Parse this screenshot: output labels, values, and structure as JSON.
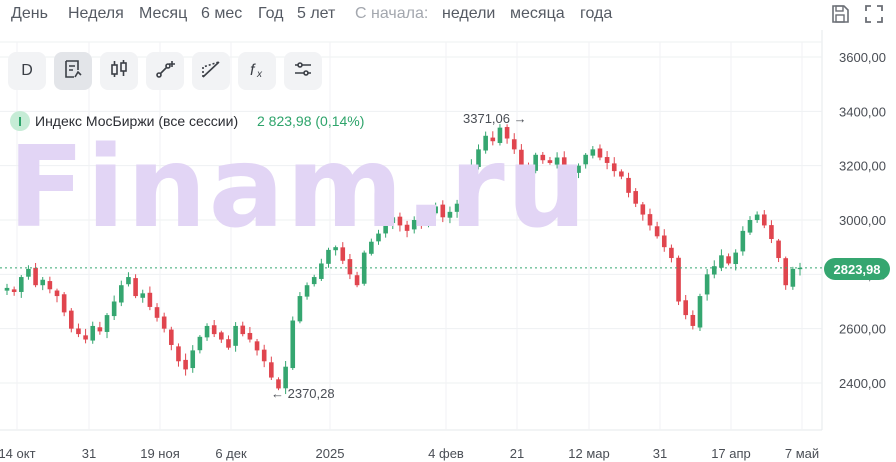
{
  "periods": {
    "items": [
      "День",
      "Неделя",
      "Месяц",
      "6 мес",
      "Год",
      "5 лет"
    ],
    "since_label": "С начала:",
    "since_items": [
      "недели",
      "месяца",
      "года"
    ]
  },
  "top_icons": [
    "save-icon",
    "fullscreen-icon"
  ],
  "toolbar": {
    "interval_label": "D",
    "tools": [
      "indicators-icon",
      "chart-type-candles-icon",
      "draw-line-icon",
      "draw-shapes-icon",
      "formula-icon",
      "settings-sliders-icon"
    ]
  },
  "legend": {
    "instrument": "Индекс МосБиржи (все сессии)",
    "value": "2 823,98 (0,14%)"
  },
  "watermark": "Finam.ru",
  "last_price_label": "2823,98",
  "colors": {
    "up": "#35a670",
    "down": "#e0454e",
    "badge": "#35a670",
    "watermark": "#e2d5f5"
  },
  "chart_data": {
    "type": "candlestick",
    "ylim": [
      2260,
      3660
    ],
    "y_ticks": [
      "3600,00",
      "3400,00",
      "3200,00",
      "3000,00",
      "2800,00",
      "2600,00",
      "2400,00"
    ],
    "y_tick_values": [
      3600,
      3400,
      3200,
      3000,
      2800,
      2600,
      2400
    ],
    "x_ticks": [
      "14 окт",
      "31",
      "19 ноя",
      "6 дек",
      "2025",
      "4 фев",
      "21",
      "12 мар",
      "31",
      "17 апр",
      "7 май"
    ],
    "last_value": 2823.98,
    "annotations": {
      "max_label": "3371,06",
      "max_value": 3371.06,
      "min_label": "2370,28",
      "min_value": 2370.28
    },
    "closes": [
      2750,
      2735,
      2790,
      2820,
      2760,
      2780,
      2745,
      2720,
      2660,
      2600,
      2580,
      2560,
      2610,
      2590,
      2650,
      2700,
      2760,
      2790,
      2720,
      2730,
      2680,
      2640,
      2600,
      2540,
      2480,
      2450,
      2520,
      2570,
      2610,
      2580,
      2560,
      2530,
      2610,
      2580,
      2560,
      2520,
      2480,
      2420,
      2380,
      2460,
      2630,
      2720,
      2760,
      2790,
      2840,
      2890,
      2900,
      2850,
      2800,
      2760,
      2880,
      2920,
      2950,
      2990,
      3010,
      2980,
      2960,
      3000,
      2990,
      3020,
      3050,
      3010,
      3030,
      3060,
      3120,
      3200,
      3260,
      3310,
      3290,
      3340,
      3300,
      3260,
      3200,
      3180,
      3240,
      3220,
      3210,
      3230,
      3190,
      3180,
      3200,
      3240,
      3260,
      3230,
      3210,
      3180,
      3160,
      3100,
      3060,
      3020,
      2980,
      2940,
      2900,
      2860,
      2700,
      2650,
      2610,
      2720,
      2800,
      2830,
      2870,
      2840,
      2880,
      2960,
      3000,
      3020,
      2980,
      2930,
      2860,
      2760,
      2820,
      2824
    ]
  }
}
